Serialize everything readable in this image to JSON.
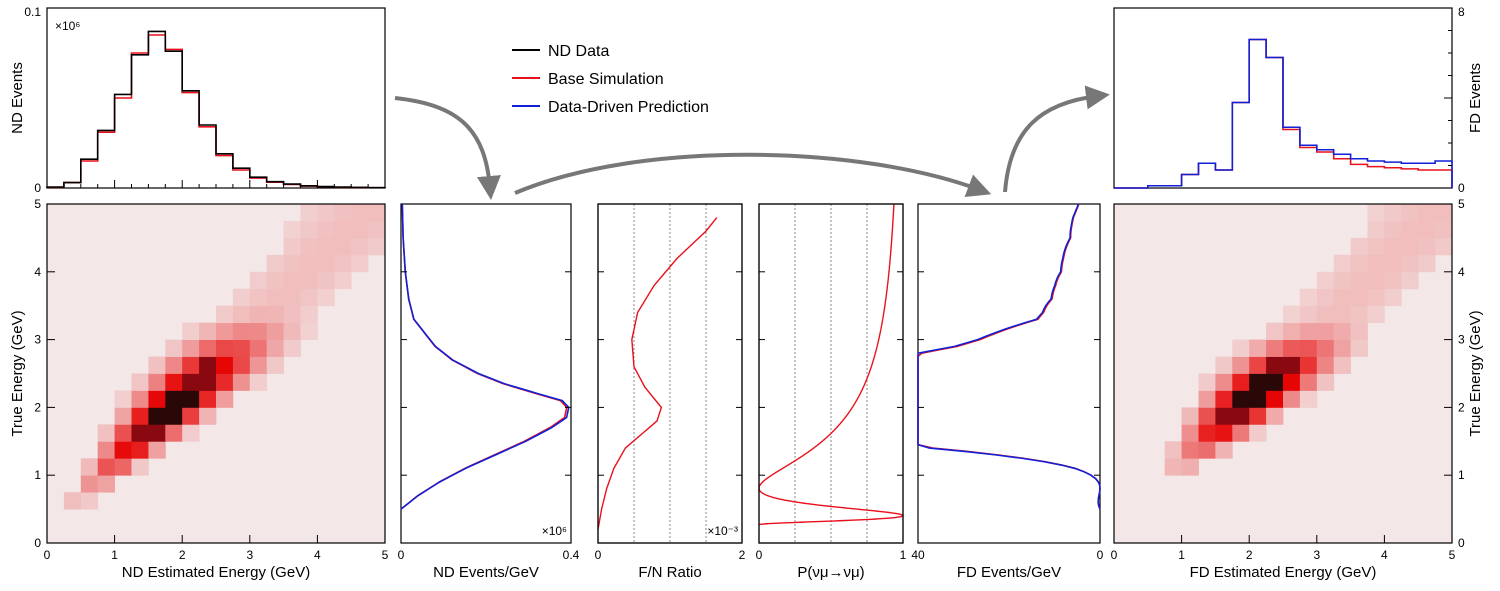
{
  "legend": {
    "items": [
      {
        "label": "ND Data",
        "color": "#000000"
      },
      {
        "label": "Base Simulation",
        "color": "#e8101a"
      },
      {
        "label": "Data-Driven Prediction",
        "color": "#1020d8"
      }
    ]
  },
  "chart_data": [
    {
      "id": "nd-hist",
      "type": "histogram",
      "ylabel": "ND Events",
      "ylim": [
        0,
        0.1
      ],
      "yticks": [
        "0",
        "0.1"
      ],
      "y_multiplier": "×10⁶",
      "xlim": [
        0,
        5
      ],
      "bin_width": 0.25,
      "series": [
        {
          "name": "ND Data",
          "color": "#000000",
          "values": [
            0.0005,
            0.003,
            0.016,
            0.032,
            0.052,
            0.074,
            0.087,
            0.076,
            0.054,
            0.035,
            0.019,
            0.011,
            0.006,
            0.0035,
            0.0022,
            0.0012,
            0.0008,
            0.0005,
            0.0003,
            0.0002
          ]
        },
        {
          "name": "Base Simulation",
          "color": "#e8101a",
          "values": [
            0.0004,
            0.003,
            0.015,
            0.031,
            0.05,
            0.075,
            0.085,
            0.077,
            0.053,
            0.034,
            0.018,
            0.01,
            0.0055,
            0.0032,
            0.002,
            0.0011,
            0.0007,
            0.0004,
            0.0003,
            0.0002
          ]
        }
      ]
    },
    {
      "id": "fd-hist",
      "type": "histogram",
      "ylabel": "FD Events",
      "ylim": [
        0,
        8
      ],
      "yticks": [
        "0",
        "8"
      ],
      "xlim": [
        0,
        5
      ],
      "bin_width": 0.25,
      "series": [
        {
          "name": "Base Simulation",
          "color": "#e8101a",
          "values": [
            0,
            0,
            0.1,
            0.1,
            0.6,
            1.1,
            0.8,
            3.8,
            6.6,
            5.8,
            2.6,
            1.8,
            1.6,
            1.3,
            1.05,
            0.95,
            0.9,
            0.85,
            0.8,
            0.8
          ]
        },
        {
          "name": "Data-Driven Prediction",
          "color": "#1020d8",
          "values": [
            0,
            0,
            0.1,
            0.1,
            0.6,
            1.1,
            0.8,
            3.8,
            6.6,
            5.8,
            2.7,
            1.9,
            1.7,
            1.5,
            1.3,
            1.2,
            1.15,
            1.1,
            1.1,
            1.2
          ]
        }
      ]
    },
    {
      "id": "nd-2d",
      "type": "heatmap",
      "xlabel": "ND Estimated Energy (GeV)",
      "ylabel": "True Energy (GeV)",
      "xlim": [
        0,
        5
      ],
      "ylim": [
        0,
        5
      ],
      "xticks": [
        "0",
        "1",
        "2",
        "3",
        "4",
        "5"
      ],
      "yticks": [
        "0",
        "1",
        "2",
        "3",
        "4",
        "5"
      ],
      "bin_width": 0.25,
      "offset": -0.15,
      "spread": 0.15,
      "peak": 2.0,
      "peak_width": 0.7
    },
    {
      "id": "fd-2d",
      "type": "heatmap",
      "xlabel": "FD Estimated Energy (GeV)",
      "ylabel": "True Energy (GeV)",
      "xlim": [
        0,
        5
      ],
      "ylim": [
        0,
        5
      ],
      "xticks": [
        "0",
        "1",
        "2",
        "3",
        "4",
        "5"
      ],
      "yticks": [
        "0",
        "1",
        "2",
        "3",
        "4",
        "5"
      ],
      "bin_width": 0.25,
      "offset": -0.1,
      "spread": 0.15,
      "peak": 2.15,
      "peak_width": 0.55
    },
    {
      "id": "nd-true",
      "type": "line",
      "xlabel": "ND Events/GeV",
      "xlim": [
        0,
        0.4
      ],
      "xticks": [
        "0",
        "0.4"
      ],
      "x_multiplier": "×10⁶",
      "ylim": [
        0,
        5
      ],
      "true_energy": [
        0.5,
        0.7,
        0.9,
        1.1,
        1.3,
        1.5,
        1.7,
        1.85,
        2.0,
        2.1,
        2.2,
        2.35,
        2.5,
        2.7,
        2.9,
        3.1,
        3.3,
        3.6,
        4.0,
        4.5,
        5.0
      ],
      "events": [
        0,
        0.04,
        0.09,
        0.15,
        0.22,
        0.29,
        0.35,
        0.385,
        0.39,
        0.375,
        0.32,
        0.24,
        0.18,
        0.12,
        0.08,
        0.055,
        0.03,
        0.018,
        0.01,
        0.005,
        0.003
      ]
    },
    {
      "id": "fn-ratio",
      "type": "line",
      "xlabel": "F/N Ratio",
      "xlim": [
        0,
        2
      ],
      "xticks": [
        "0",
        "2"
      ],
      "x_multiplier": "×10⁻³",
      "ylim": [
        0,
        5
      ],
      "grid": true,
      "true_energy": [
        0.2,
        0.5,
        0.8,
        1.1,
        1.4,
        1.6,
        1.8,
        2.0,
        2.3,
        2.6,
        3.0,
        3.4,
        3.8,
        4.2,
        4.6,
        4.8
      ],
      "ratio": [
        0,
        0.05,
        0.12,
        0.22,
        0.38,
        0.6,
        0.82,
        0.88,
        0.65,
        0.5,
        0.47,
        0.55,
        0.78,
        1.1,
        1.5,
        1.65
      ]
    },
    {
      "id": "oscillation",
      "type": "line",
      "xlabel": "P(νμ→νμ)",
      "xlim": [
        0,
        1
      ],
      "xticks": [
        "0",
        "1"
      ],
      "ylim": [
        0,
        5
      ],
      "grid": true,
      "dm2_l": 1.27
    },
    {
      "id": "fd-true",
      "type": "line",
      "xlabel": "FD Events/GeV",
      "xlim": [
        40,
        0
      ],
      "xticks": [
        "40",
        "0"
      ],
      "ylim": [
        0,
        5
      ]
    }
  ]
}
